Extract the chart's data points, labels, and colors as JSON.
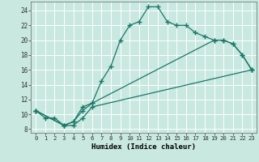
{
  "xlabel": "Humidex (Indice chaleur)",
  "background_color": "#c8e8e0",
  "grid_color": "#ffffff",
  "line_color": "#1a7868",
  "xlim": [
    -0.5,
    23.5
  ],
  "ylim": [
    7.5,
    25.2
  ],
  "xticks": [
    0,
    1,
    2,
    3,
    4,
    5,
    6,
    7,
    8,
    9,
    10,
    11,
    12,
    13,
    14,
    15,
    16,
    17,
    18,
    19,
    20,
    21,
    22,
    23
  ],
  "yticks": [
    8,
    10,
    12,
    14,
    16,
    18,
    20,
    22,
    24
  ],
  "line1_x": [
    0,
    1,
    2,
    3,
    4,
    5,
    6,
    7,
    8,
    9,
    10,
    11,
    12,
    13,
    14,
    15,
    16,
    17,
    18,
    19,
    20,
    21,
    22,
    23
  ],
  "line1_y": [
    10.5,
    9.5,
    9.5,
    8.5,
    9.0,
    11.0,
    11.5,
    14.5,
    16.5,
    20.0,
    22.0,
    22.5,
    24.5,
    24.5,
    22.5,
    22.0,
    22.0,
    21.0,
    20.5,
    20.0,
    20.0,
    19.5,
    18.0,
    16.0
  ],
  "line2_x": [
    0,
    3,
    4,
    5,
    6,
    19,
    20,
    21,
    22,
    23
  ],
  "line2_y": [
    10.5,
    8.5,
    9.0,
    10.5,
    11.5,
    20.0,
    20.0,
    19.5,
    18.0,
    16.0
  ],
  "line3_x": [
    0,
    3,
    4,
    5,
    6,
    23
  ],
  "line3_y": [
    10.5,
    8.5,
    8.5,
    9.5,
    11.0,
    16.0
  ]
}
